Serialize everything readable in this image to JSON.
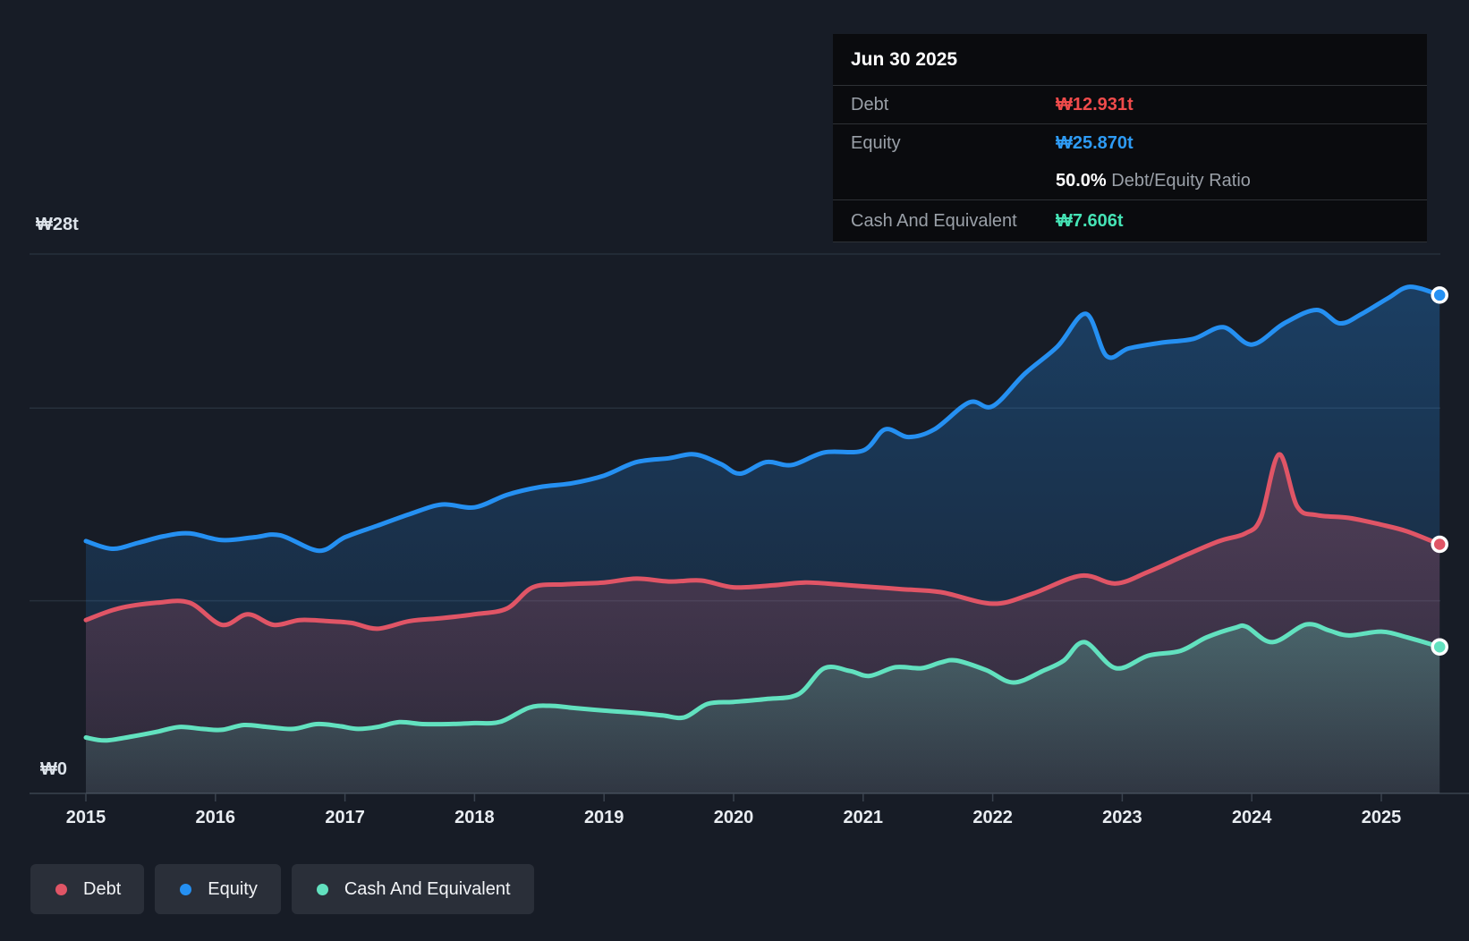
{
  "colors": {
    "background": "#171c26",
    "debt": "#e05566",
    "equity": "#2590f2",
    "cash": "#62e1bf",
    "debt_value": "#f04b4b",
    "equity_value": "#2e9bf5",
    "cash_value": "#45e3b5",
    "grid": "#27303c",
    "axis": "#3a434f"
  },
  "tooltip": {
    "date": "Jun 30 2025",
    "debt": {
      "label": "Debt",
      "value": "₩12.931t"
    },
    "equity": {
      "label": "Equity",
      "value": "₩25.870t"
    },
    "ratio": {
      "value": "50.0%",
      "label": "Debt/Equity Ratio"
    },
    "cash": {
      "label": "Cash And Equivalent",
      "value": "₩7.606t"
    }
  },
  "legend": {
    "items": [
      {
        "label": "Debt",
        "color": "#e05566"
      },
      {
        "label": "Equity",
        "color": "#2590f2"
      },
      {
        "label": "Cash And Equivalent",
        "color": "#62e1bf"
      }
    ]
  },
  "y_axis": {
    "top_label": "₩28t",
    "zero_label": "₩0"
  },
  "chart_data": {
    "type": "area",
    "unit": "₩ trillions (KRW)",
    "x_ticks": [
      "2015",
      "2016",
      "2017",
      "2018",
      "2019",
      "2020",
      "2021",
      "2022",
      "2023",
      "2024",
      "2025"
    ],
    "x_range": [
      2015.0,
      2025.45
    ],
    "ylim": [
      0,
      28
    ],
    "gridline_values": [
      28,
      20,
      10
    ],
    "legend_position": "bottom-left",
    "series": [
      {
        "name": "Equity",
        "color": "#2590f2",
        "end_value": 25.87,
        "points": [
          [
            2015.0,
            13.1
          ],
          [
            2015.2,
            12.7
          ],
          [
            2015.4,
            13.0
          ],
          [
            2015.6,
            13.35
          ],
          [
            2015.8,
            13.5
          ],
          [
            2016.05,
            13.15
          ],
          [
            2016.3,
            13.3
          ],
          [
            2016.5,
            13.4
          ],
          [
            2016.8,
            12.6
          ],
          [
            2017.0,
            13.3
          ],
          [
            2017.25,
            13.9
          ],
          [
            2017.5,
            14.5
          ],
          [
            2017.75,
            15.0
          ],
          [
            2018.0,
            14.85
          ],
          [
            2018.25,
            15.5
          ],
          [
            2018.5,
            15.9
          ],
          [
            2018.75,
            16.1
          ],
          [
            2019.0,
            16.5
          ],
          [
            2019.25,
            17.2
          ],
          [
            2019.5,
            17.4
          ],
          [
            2019.7,
            17.6
          ],
          [
            2019.9,
            17.1
          ],
          [
            2020.05,
            16.6
          ],
          [
            2020.25,
            17.2
          ],
          [
            2020.45,
            17.05
          ],
          [
            2020.7,
            17.7
          ],
          [
            2021.0,
            17.8
          ],
          [
            2021.17,
            18.9
          ],
          [
            2021.35,
            18.5
          ],
          [
            2021.55,
            18.9
          ],
          [
            2021.82,
            20.3
          ],
          [
            2022.0,
            20.1
          ],
          [
            2022.25,
            21.8
          ],
          [
            2022.5,
            23.2
          ],
          [
            2022.72,
            24.9
          ],
          [
            2022.88,
            22.7
          ],
          [
            2023.05,
            23.1
          ],
          [
            2023.3,
            23.4
          ],
          [
            2023.55,
            23.6
          ],
          [
            2023.78,
            24.2
          ],
          [
            2024.0,
            23.3
          ],
          [
            2024.25,
            24.4
          ],
          [
            2024.5,
            25.1
          ],
          [
            2024.68,
            24.4
          ],
          [
            2024.85,
            24.9
          ],
          [
            2025.05,
            25.7
          ],
          [
            2025.22,
            26.3
          ],
          [
            2025.45,
            25.87
          ]
        ]
      },
      {
        "name": "Debt",
        "color": "#e05566",
        "end_value": 12.931,
        "points": [
          [
            2015.0,
            9.0
          ],
          [
            2015.25,
            9.6
          ],
          [
            2015.55,
            9.9
          ],
          [
            2015.8,
            9.9
          ],
          [
            2016.05,
            8.75
          ],
          [
            2016.25,
            9.3
          ],
          [
            2016.45,
            8.75
          ],
          [
            2016.65,
            9.0
          ],
          [
            2016.85,
            8.95
          ],
          [
            2017.05,
            8.85
          ],
          [
            2017.25,
            8.55
          ],
          [
            2017.5,
            8.95
          ],
          [
            2017.75,
            9.1
          ],
          [
            2018.0,
            9.3
          ],
          [
            2018.25,
            9.6
          ],
          [
            2018.45,
            10.7
          ],
          [
            2018.7,
            10.85
          ],
          [
            2019.0,
            10.95
          ],
          [
            2019.25,
            11.15
          ],
          [
            2019.5,
            11.0
          ],
          [
            2019.75,
            11.05
          ],
          [
            2020.0,
            10.7
          ],
          [
            2020.3,
            10.8
          ],
          [
            2020.55,
            10.95
          ],
          [
            2020.8,
            10.85
          ],
          [
            2021.0,
            10.75
          ],
          [
            2021.3,
            10.6
          ],
          [
            2021.6,
            10.45
          ],
          [
            2022.0,
            9.85
          ],
          [
            2022.3,
            10.35
          ],
          [
            2022.68,
            11.3
          ],
          [
            2022.95,
            10.9
          ],
          [
            2023.2,
            11.5
          ],
          [
            2023.5,
            12.4
          ],
          [
            2023.75,
            13.1
          ],
          [
            2023.95,
            13.5
          ],
          [
            2024.07,
            14.3
          ],
          [
            2024.21,
            17.6
          ],
          [
            2024.35,
            14.9
          ],
          [
            2024.5,
            14.45
          ],
          [
            2024.75,
            14.3
          ],
          [
            2025.0,
            13.95
          ],
          [
            2025.2,
            13.6
          ],
          [
            2025.45,
            12.931
          ]
        ]
      },
      {
        "name": "Cash And Equivalent",
        "color": "#62e1bf",
        "end_value": 7.606,
        "points": [
          [
            2015.0,
            2.9
          ],
          [
            2015.15,
            2.75
          ],
          [
            2015.35,
            2.95
          ],
          [
            2015.55,
            3.2
          ],
          [
            2015.72,
            3.45
          ],
          [
            2015.9,
            3.35
          ],
          [
            2016.05,
            3.3
          ],
          [
            2016.22,
            3.55
          ],
          [
            2016.4,
            3.45
          ],
          [
            2016.6,
            3.35
          ],
          [
            2016.78,
            3.6
          ],
          [
            2016.95,
            3.5
          ],
          [
            2017.1,
            3.35
          ],
          [
            2017.25,
            3.45
          ],
          [
            2017.42,
            3.7
          ],
          [
            2017.6,
            3.6
          ],
          [
            2017.8,
            3.6
          ],
          [
            2018.0,
            3.65
          ],
          [
            2018.2,
            3.72
          ],
          [
            2018.42,
            4.45
          ],
          [
            2018.58,
            4.55
          ],
          [
            2018.75,
            4.45
          ],
          [
            2019.0,
            4.3
          ],
          [
            2019.25,
            4.18
          ],
          [
            2019.45,
            4.05
          ],
          [
            2019.62,
            3.95
          ],
          [
            2019.8,
            4.65
          ],
          [
            2020.0,
            4.75
          ],
          [
            2020.25,
            4.9
          ],
          [
            2020.5,
            5.15
          ],
          [
            2020.7,
            6.5
          ],
          [
            2020.9,
            6.35
          ],
          [
            2021.05,
            6.1
          ],
          [
            2021.25,
            6.55
          ],
          [
            2021.45,
            6.5
          ],
          [
            2021.6,
            6.8
          ],
          [
            2021.72,
            6.9
          ],
          [
            2021.95,
            6.4
          ],
          [
            2022.16,
            5.76
          ],
          [
            2022.4,
            6.4
          ],
          [
            2022.55,
            6.9
          ],
          [
            2022.71,
            7.85
          ],
          [
            2022.95,
            6.5
          ],
          [
            2023.2,
            7.15
          ],
          [
            2023.45,
            7.4
          ],
          [
            2023.65,
            8.1
          ],
          [
            2023.87,
            8.6
          ],
          [
            2023.96,
            8.65
          ],
          [
            2024.16,
            7.85
          ],
          [
            2024.42,
            8.77
          ],
          [
            2024.6,
            8.45
          ],
          [
            2024.75,
            8.2
          ],
          [
            2025.0,
            8.4
          ],
          [
            2025.2,
            8.1
          ],
          [
            2025.45,
            7.606
          ]
        ]
      }
    ]
  }
}
